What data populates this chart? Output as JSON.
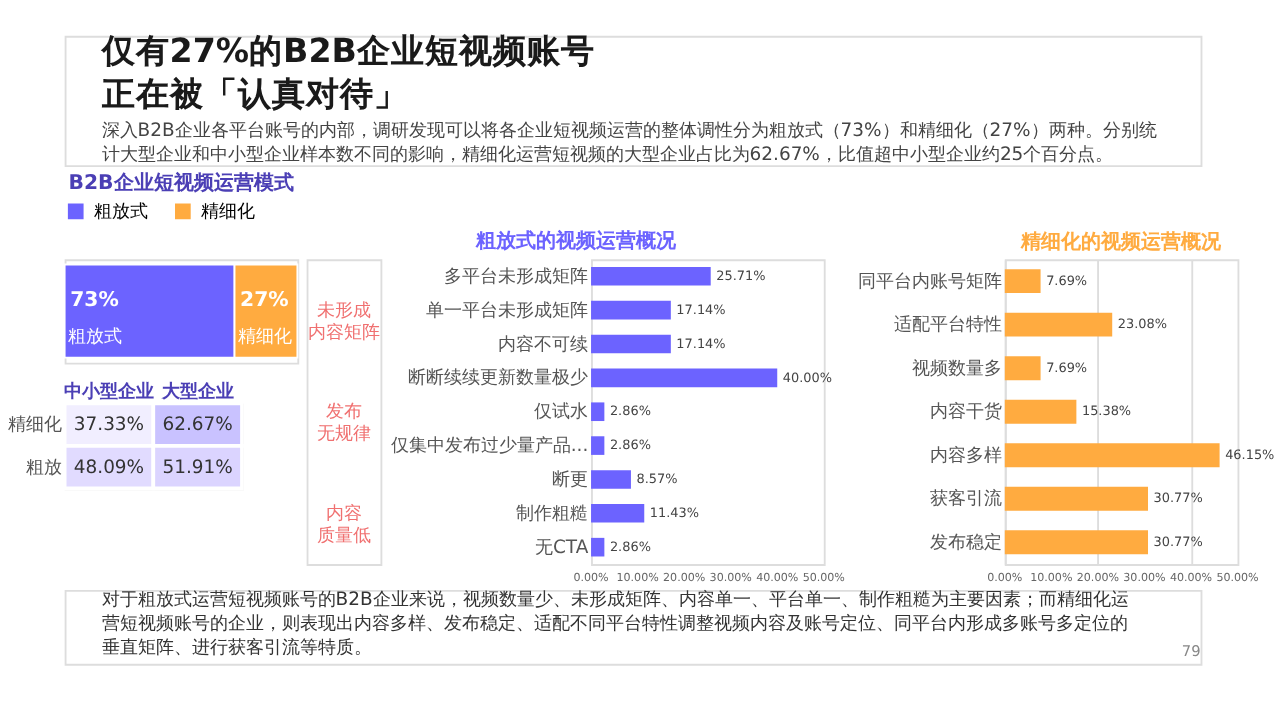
{
  "chart_data": [
    {
      "type": "other",
      "title": "仅有27%的B2B企业短视频账号正在被「认真对待」",
      "subtitle": "深入B2B企业各平台账号的内部，调研发现可以将各企业短视频运营的整体调性分为粗放式（73%）和精细化（27%）两种。分别统计大型企业和中小型企业样本数不同的影响，精细化运营短视频的大型企业占比为62.67%，比值超中小型企业约25个百分点。"
    },
    {
      "type": "bar",
      "title": "B2B企业短视频运营模式",
      "orientation": "horizontal",
      "stacked": true,
      "legend": "top",
      "categories": [
        null
      ],
      "series": [
        {
          "name": "粗放式",
          "color": "#6c63ff",
          "values": [
            73
          ],
          "value_labels": [
            "73%"
          ]
        },
        {
          "name": "精细化",
          "color": "#ffab40",
          "values": [
            27
          ],
          "value_labels": [
            "27%"
          ]
        }
      ]
    },
    {
      "type": "heatmap",
      "categories": [
        "中小型企业",
        "大型企业"
      ],
      "y_categories": [
        "精细化",
        "粗放"
      ],
      "cells": [
        [
          37.33,
          62.67
        ],
        [
          48.09,
          51.91
        ]
      ],
      "cell_labels": [
        [
          "37.33%",
          "62.67%"
        ],
        [
          "48.09%",
          "51.91%"
        ]
      ]
    },
    {
      "type": "bar",
      "title": "粗放式的视频运营概况",
      "orientation": "horizontal",
      "color": "#6c63ff",
      "grid": false,
      "categories": [
        "多平台未形成矩阵",
        "单一平台未形成矩阵",
        "内容不可续",
        "断断续续更新数量极少",
        "仅试水",
        "仅集中发布过少量产品...",
        "断更",
        "制作粗糙",
        "无CTA"
      ],
      "values": [
        25.71,
        17.14,
        17.14,
        40.0,
        2.86,
        2.86,
        8.57,
        11.43,
        2.86
      ],
      "value_labels": [
        "25.71%",
        "17.14%",
        "17.14%",
        "40.00%",
        "2.86%",
        "2.86%",
        "8.57%",
        "11.43%",
        "2.86%"
      ],
      "xlim": [
        0,
        50
      ],
      "xticks": [
        {
          "value": 0,
          "label": "0.00%"
        },
        {
          "value": 10,
          "label": "10.00%"
        },
        {
          "value": 20,
          "label": "20.00%"
        },
        {
          "value": 30,
          "label": "30.00%"
        },
        {
          "value": 40,
          "label": "40.00%"
        },
        {
          "value": 50,
          "label": "50.00%"
        }
      ],
      "annotations": [
        "未形成内容矩阵",
        "发布无规律",
        "内容质量低"
      ]
    },
    {
      "type": "bar",
      "title": "精细化的视频运营概况",
      "orientation": "horizontal",
      "color": "#ffab40",
      "grid": "x",
      "categories": [
        "同平台内账号矩阵",
        "适配平台特性",
        "视频数量多",
        "内容干货",
        "内容多样",
        "获客引流",
        "发布稳定"
      ],
      "values": [
        7.69,
        23.08,
        7.69,
        15.38,
        46.15,
        30.77,
        30.77
      ],
      "value_labels": [
        "7.69%",
        "23.08%",
        "7.69%",
        "15.38%",
        "46.15%",
        "30.77%",
        "30.77%"
      ],
      "xlim": [
        0,
        50
      ],
      "xticks": [
        {
          "value": 0,
          "label": "0.00%"
        },
        {
          "value": 10,
          "label": "10.00%"
        },
        {
          "value": 20,
          "label": "20.00%"
        },
        {
          "value": 30,
          "label": "30.00%"
        },
        {
          "value": 40,
          "label": "40.00%"
        },
        {
          "value": 50,
          "label": "50.00%"
        }
      ]
    },
    {
      "type": "other",
      "annotations": [
        "对于粗放式运营短视频账号的B2B企业来说，视频数量少、未形成矩阵、内容单一、平台单一、制作粗糙为主要因素；而精细化运营短视频账号的企业，则表现出内容多样、发布稳定、适配不同平台特性调整视频内容及账号定位、同平台内形成多账号多定位的垂直矩阵、进行获客引流等特质。",
        "79"
      ]
    }
  ]
}
